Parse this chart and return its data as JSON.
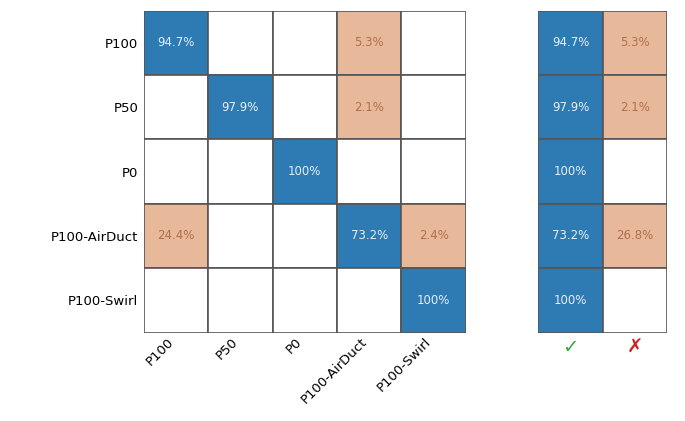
{
  "row_labels": [
    "P100",
    "P50",
    "P0",
    "P100-AirDuct",
    "P100-Swirl"
  ],
  "col_labels": [
    "P100",
    "P50",
    "P0",
    "P100-AirDuct",
    "P100-Swirl"
  ],
  "matrix": [
    [
      94.7,
      0,
      0,
      5.3,
      0
    ],
    [
      0,
      97.9,
      0,
      2.1,
      0
    ],
    [
      0,
      0,
      100.0,
      0,
      0
    ],
    [
      24.4,
      0,
      0,
      73.2,
      2.4
    ],
    [
      0,
      0,
      0,
      0,
      100.0
    ]
  ],
  "blue_color": "#2e7bb4",
  "salmon_color": "#e8b89a",
  "white_color": "#ffffff",
  "text_color_on_blue": "#e8eef5",
  "text_color_on_salmon": "#b07050",
  "summary_correct": [
    94.7,
    97.9,
    100.0,
    73.2,
    100.0
  ],
  "summary_wrong": [
    5.3,
    2.1,
    0,
    26.8,
    0
  ],
  "tick_symbol": "✓",
  "cross_symbol": "✗",
  "tick_color": "#33aa44",
  "cross_color": "#cc2222",
  "figure_width": 6.85,
  "figure_height": 4.21,
  "cell_fontsize": 8.5,
  "label_fontsize": 9.5,
  "symbol_fontsize": 14,
  "border_color": "#555555",
  "border_lw": 1.2
}
